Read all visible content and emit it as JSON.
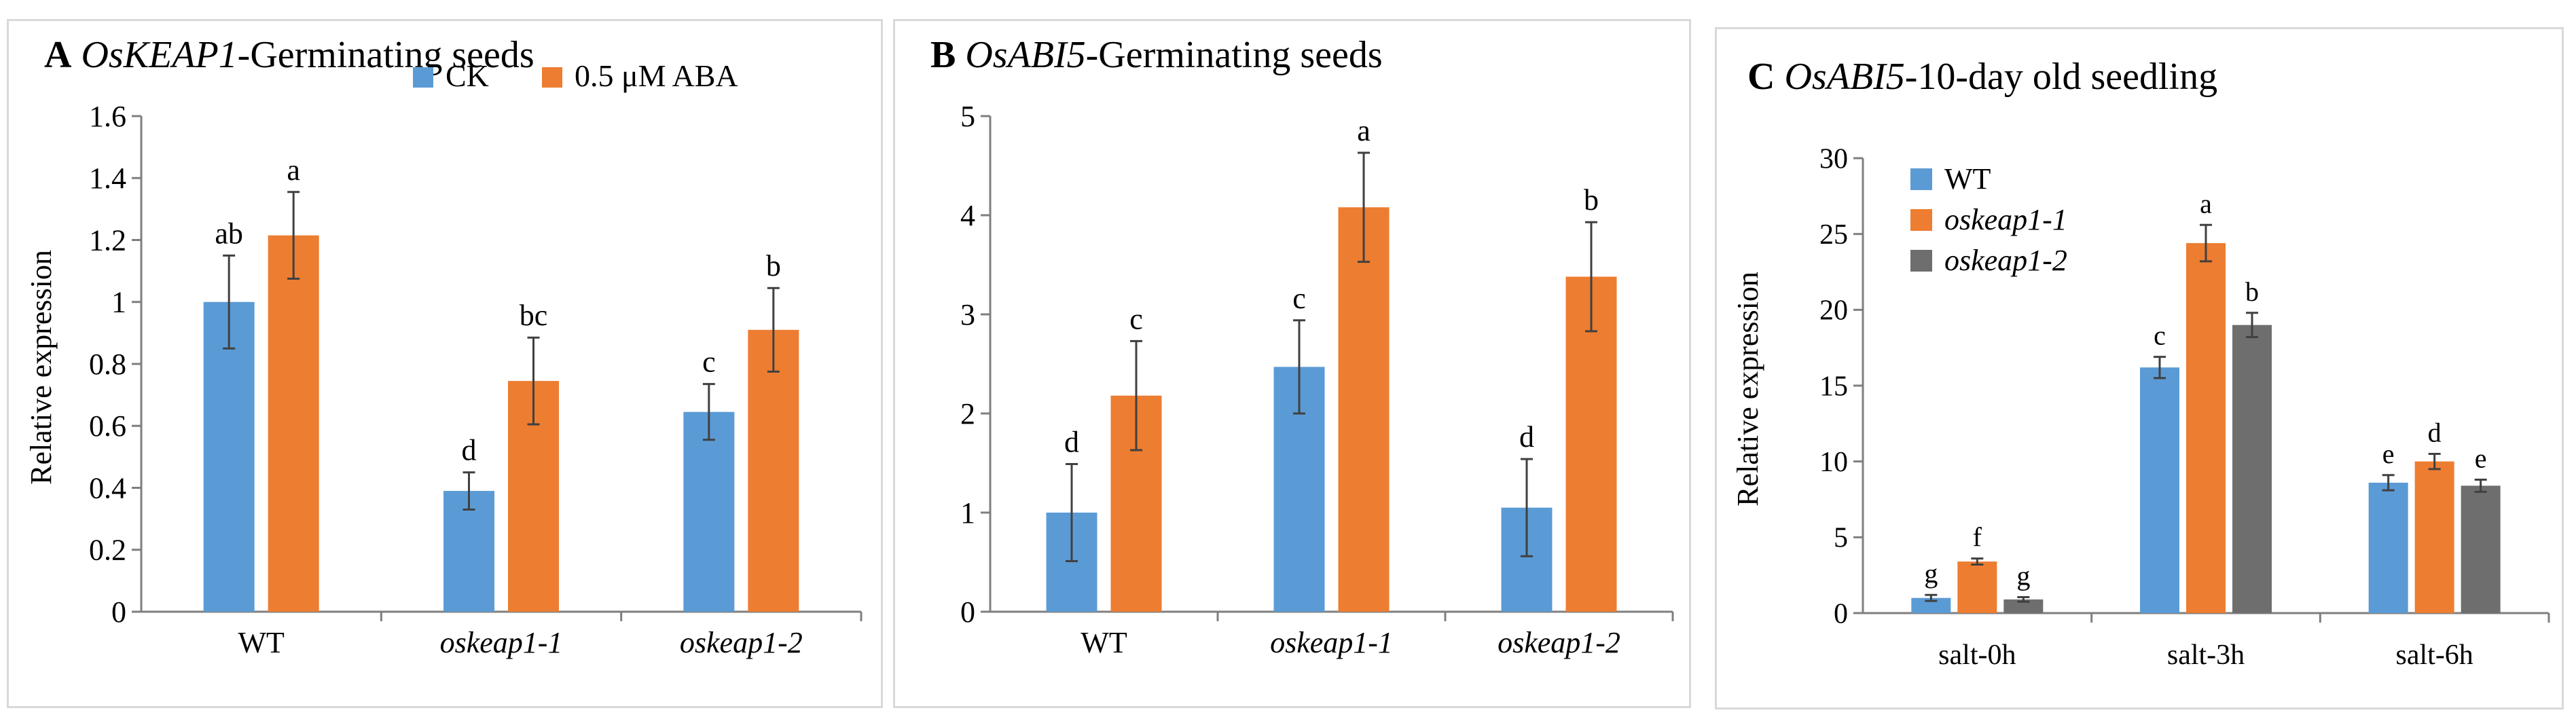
{
  "colors": {
    "blue": "#5b9bd5",
    "orange": "#ed7d31",
    "gray": "#6e6e6e",
    "axis": "#7f7f7f",
    "err": "#404040"
  },
  "chart_data": [
    {
      "panel": "A",
      "type": "bar",
      "title": {
        "letter": "A",
        "gene": "OsKEAP1",
        "rest": "-Germinating seeds"
      },
      "ylabel": "Relative expression",
      "ylim": [
        0,
        1.6
      ],
      "yticks": [
        "0",
        "0.2",
        "0.4",
        "0.6",
        "0.8",
        "1",
        "1.2",
        "1.4",
        "1.6"
      ],
      "categories": [
        "WT",
        "oskeap1-1",
        "oskeap1-2"
      ],
      "category_italic": [
        false,
        true,
        true
      ],
      "legend_position": "top-right",
      "series": [
        {
          "name": "CK",
          "color": "#5b9bd5",
          "values": [
            1.0,
            0.39,
            0.645
          ],
          "errors": [
            0.15,
            0.06,
            0.09
          ],
          "labels": [
            "ab",
            "d",
            "c"
          ]
        },
        {
          "name": "0.5 μM ABA",
          "color": "#ed7d31",
          "values": [
            1.215,
            0.745,
            0.91
          ],
          "errors": [
            0.14,
            0.14,
            0.135
          ],
          "labels": [
            "a",
            "bc",
            "b"
          ]
        }
      ]
    },
    {
      "panel": "B",
      "type": "bar",
      "title": {
        "letter": "B",
        "gene": "OsABI5",
        "rest": "-Germinating seeds"
      },
      "ylabel": "",
      "ylim": [
        0,
        5
      ],
      "yticks": [
        "0",
        "1",
        "2",
        "3",
        "4",
        "5"
      ],
      "categories": [
        "WT",
        "oskeap1-1",
        "oskeap1-2"
      ],
      "category_italic": [
        false,
        true,
        true
      ],
      "legend_position": "none",
      "series": [
        {
          "color": "#5b9bd5",
          "values": [
            1.0,
            2.47,
            1.05
          ],
          "errors": [
            0.49,
            0.47,
            0.49
          ],
          "labels": [
            "d",
            "c",
            "d"
          ]
        },
        {
          "color": "#ed7d31",
          "values": [
            2.18,
            4.08,
            3.38
          ],
          "errors": [
            0.55,
            0.55,
            0.55
          ],
          "labels": [
            "c",
            "a",
            "b"
          ]
        }
      ]
    },
    {
      "panel": "C",
      "type": "bar",
      "title": {
        "letter": "C",
        "gene": "OsABI5",
        "rest": "-10-day old seedling"
      },
      "ylabel": "Relative expression",
      "ylim": [
        0,
        30
      ],
      "yticks": [
        "0",
        "5",
        "10",
        "15",
        "20",
        "25",
        "30"
      ],
      "categories": [
        "salt-0h",
        "salt-3h",
        "salt-6h"
      ],
      "category_italic": [
        false,
        false,
        false
      ],
      "legend_position": "top-left",
      "series": [
        {
          "name": "WT",
          "name_italic": false,
          "color": "#5b9bd5",
          "values": [
            1.0,
            16.2,
            8.6
          ],
          "errors": [
            0.2,
            0.7,
            0.5
          ],
          "labels": [
            "g",
            "c",
            "e"
          ]
        },
        {
          "name": "oskeap1-1",
          "name_italic": true,
          "color": "#ed7d31",
          "values": [
            3.4,
            24.4,
            10.0
          ],
          "errors": [
            0.2,
            1.2,
            0.5
          ],
          "labels": [
            "f",
            "a",
            "d"
          ]
        },
        {
          "name": "oskeap1-2",
          "name_italic": true,
          "color": "#6e6e6e",
          "values": [
            0.9,
            19.0,
            8.4
          ],
          "errors": [
            0.15,
            0.8,
            0.4
          ],
          "labels": [
            "g",
            "b",
            "e"
          ]
        }
      ]
    }
  ]
}
